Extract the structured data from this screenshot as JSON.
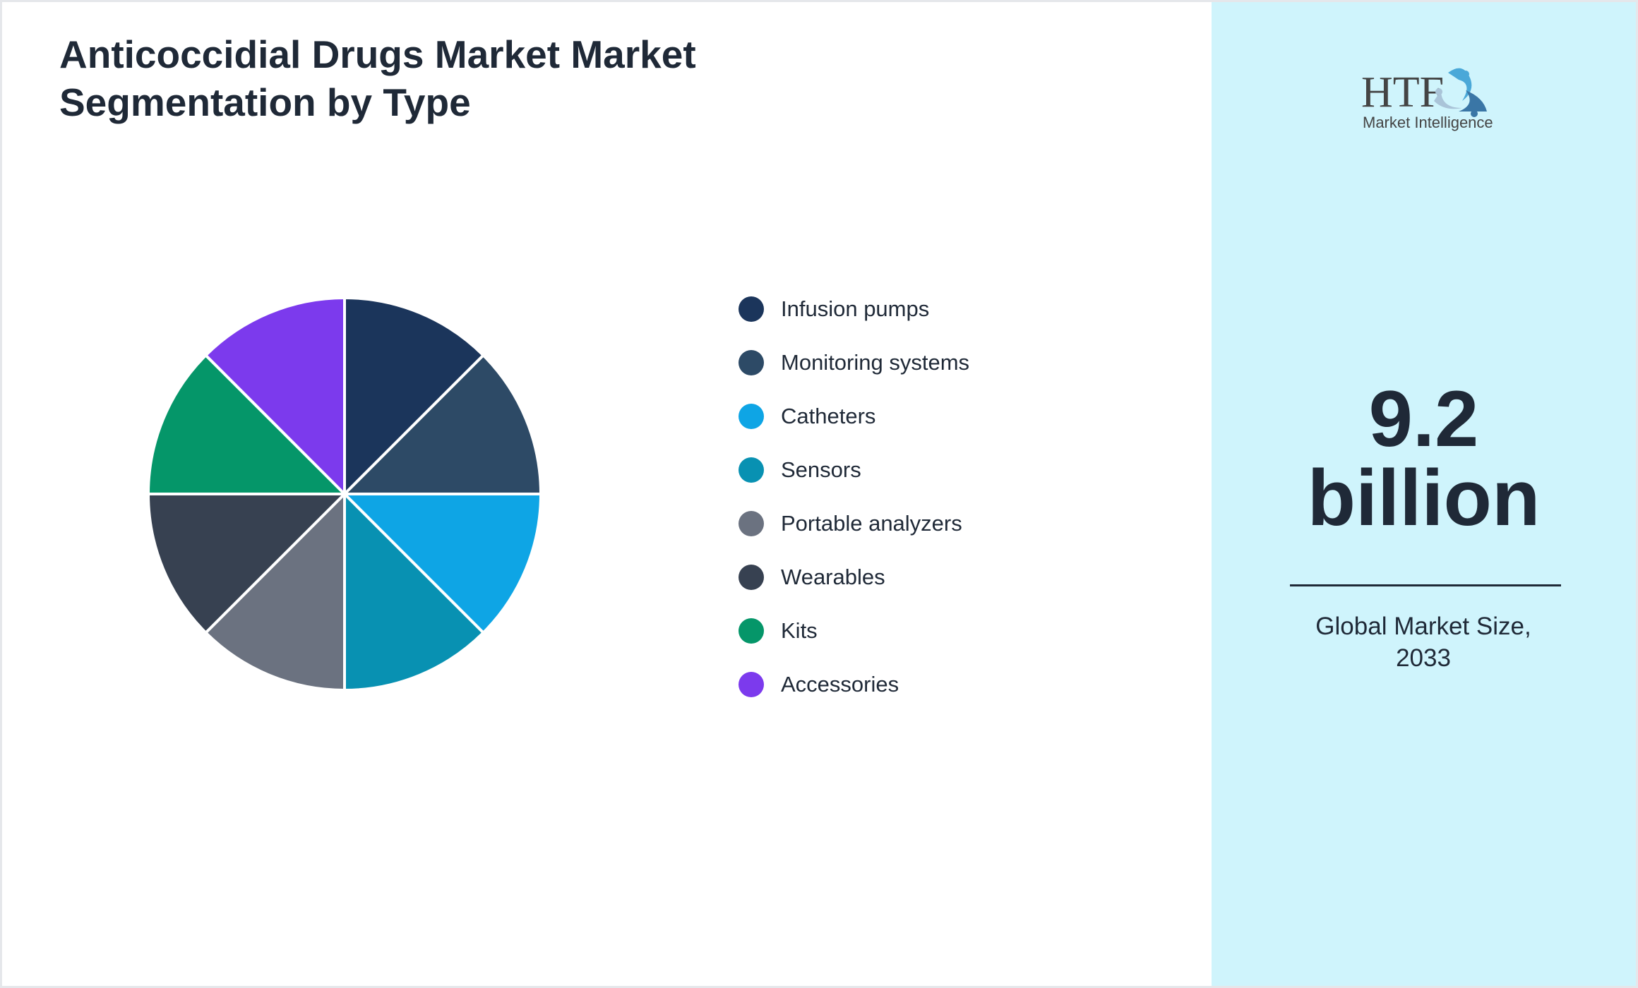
{
  "title": "Anticoccidial Drugs Market Market Segmentation by Type",
  "chart_data": {
    "type": "pie",
    "title": "Anticoccidial Drugs Market Market Segmentation by Type",
    "categories": [
      "Infusion pumps",
      "Monitoring systems",
      "Catheters",
      "Sensors",
      "Portable analyzers",
      "Wearables",
      "Kits",
      "Accessories"
    ],
    "values": [
      12.5,
      12.5,
      12.5,
      12.5,
      12.5,
      12.5,
      12.5,
      12.5
    ],
    "colors": [
      "#1b355b",
      "#2d4a66",
      "#0ea5e5",
      "#0891b2",
      "#6b7280",
      "#374151",
      "#059669",
      "#7c3aed"
    ],
    "legend": "right"
  },
  "kpi": {
    "value": "9.2",
    "unit": "billion",
    "caption_line1": "Global Market Size,",
    "caption_line2": "2033"
  },
  "logo": {
    "text": "HTF",
    "subtext": "Market Intelligence"
  },
  "colors": {
    "panel": "#cff4fc",
    "text": "#1f2937"
  }
}
